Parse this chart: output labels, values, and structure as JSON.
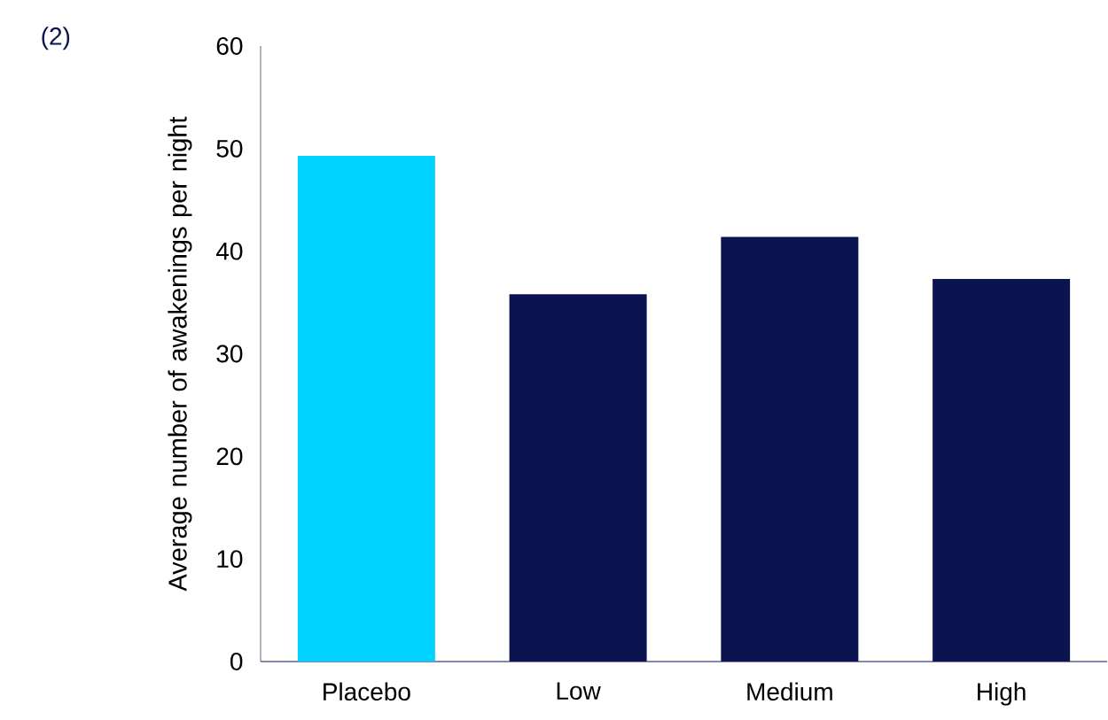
{
  "chart_data": {
    "type": "bar",
    "ylabel": "Average number of awakenings per night",
    "categories": [
      "Placebo",
      "Low",
      "Medium",
      "High"
    ],
    "values": [
      49.3,
      35.8,
      41.4,
      37.3
    ],
    "colors": [
      "#00d2ff",
      "#0c1450",
      "#0c1450",
      "#0c1450"
    ],
    "ylim": [
      0,
      60
    ],
    "yticks": [
      0,
      10,
      20,
      30,
      40,
      50,
      60
    ],
    "grid": false,
    "annotations": [
      "(2)"
    ]
  }
}
